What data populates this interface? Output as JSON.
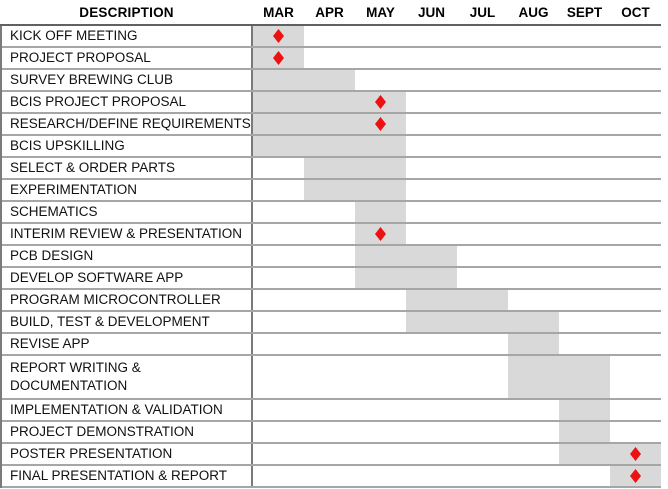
{
  "colors": {
    "bar_fill": "#d9d9d9",
    "milestone_red": "#ed1111",
    "grid_line": "#a6a6a6",
    "header_rule": "#616161",
    "divider": "#7a7a7a",
    "text": "#111111"
  },
  "chart_data": {
    "type": "gantt",
    "description_header": "DESCRIPTION",
    "months": [
      "MAR",
      "APR",
      "MAY",
      "JUN",
      "JUL",
      "AUG",
      "SEPT",
      "OCT"
    ],
    "tasks": [
      {
        "name": "KICK OFF MEETING",
        "start": "MAR",
        "end": "MAR",
        "milestone": "MAR",
        "tall": false
      },
      {
        "name": "PROJECT PROPOSAL",
        "start": "MAR",
        "end": "MAR",
        "milestone": "MAR",
        "tall": false
      },
      {
        "name": "SURVEY BREWING CLUB",
        "start": "MAR",
        "end": "APR",
        "milestone": null,
        "tall": false
      },
      {
        "name": "BCIS PROJECT PROPOSAL",
        "start": "MAR",
        "end": "MAY",
        "milestone": "MAY",
        "tall": false
      },
      {
        "name": "RESEARCH/DEFINE REQUIREMENTS",
        "start": "MAR",
        "end": "MAY",
        "milestone": "MAY",
        "tall": false
      },
      {
        "name": "BCIS UPSKILLING",
        "start": "MAR",
        "end": "MAY",
        "milestone": null,
        "tall": false
      },
      {
        "name": "SELECT & ORDER PARTS",
        "start": "APR",
        "end": "MAY",
        "milestone": null,
        "tall": false
      },
      {
        "name": "EXPERIMENTATION",
        "start": "APR",
        "end": "MAY",
        "milestone": null,
        "tall": false
      },
      {
        "name": "SCHEMATICS",
        "start": "MAY",
        "end": "MAY",
        "milestone": null,
        "tall": false
      },
      {
        "name": "INTERIM REVIEW & PRESENTATION",
        "start": "MAY",
        "end": "MAY",
        "milestone": "MAY",
        "tall": false
      },
      {
        "name": "PCB DESIGN",
        "start": "MAY",
        "end": "JUN",
        "milestone": null,
        "tall": false
      },
      {
        "name": "DEVELOP SOFTWARE APP",
        "start": "MAY",
        "end": "JUN",
        "milestone": null,
        "tall": false
      },
      {
        "name": "PROGRAM MICROCONTROLLER",
        "start": "JUN",
        "end": "JUL",
        "milestone": null,
        "tall": false
      },
      {
        "name": "BUILD, TEST & DEVELOPMENT",
        "start": "JUN",
        "end": "AUG",
        "milestone": null,
        "tall": false
      },
      {
        "name": "REVISE APP",
        "start": "AUG",
        "end": "AUG",
        "milestone": null,
        "tall": false
      },
      {
        "name": "REPORT WRITING &\nDOCUMENTATION",
        "start": "AUG",
        "end": "SEPT",
        "milestone": null,
        "tall": true
      },
      {
        "name": "IMPLEMENTATION & VALIDATION",
        "start": "SEPT",
        "end": "SEPT",
        "milestone": null,
        "tall": false
      },
      {
        "name": "PROJECT DEMONSTRATION",
        "start": "SEPT",
        "end": "SEPT",
        "milestone": null,
        "tall": false
      },
      {
        "name": "POSTER PRESENTATION",
        "start": "SEPT",
        "end": "OCT",
        "milestone": "OCT",
        "tall": false
      },
      {
        "name": "FINAL PRESENTATION & REPORT",
        "start": "OCT",
        "end": "OCT",
        "milestone": "OCT",
        "tall": false
      }
    ],
    "layout_hints": {
      "grid": "horizontal lines only",
      "legend": "none",
      "bar_style": "solid gray month-span blocks",
      "milestone_style": "red diamond centered on month"
    }
  }
}
